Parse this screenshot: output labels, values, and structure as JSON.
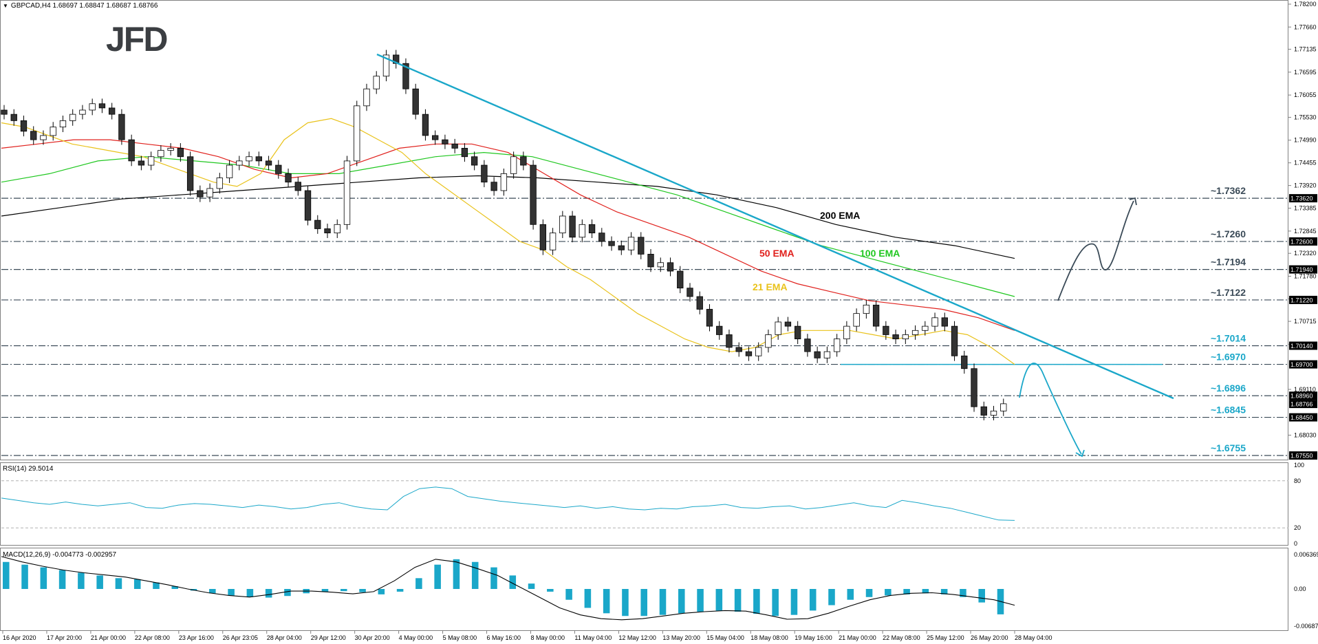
{
  "header": {
    "symbol_info": "GBPCAD,H4  1.68697 1.68847 1.68687 1.68766",
    "logo": "JFD"
  },
  "chart_data": {
    "type": "candlestick",
    "price_axis": {
      "ylim": [
        1.6755,
        1.782
      ],
      "ticks": [
        "1.78200",
        "1.77660",
        "1.77135",
        "1.76595",
        "1.76055",
        "1.75530",
        "1.74990",
        "1.74455",
        "1.73920",
        "1.73385",
        "1.72845",
        "1.72320",
        "1.71780",
        "1.71245",
        "1.70715",
        "1.70175",
        "1.69110",
        "1.68030"
      ],
      "tags": [
        {
          "value": "1.73620",
          "label": "1.73620"
        },
        {
          "value": "1.72600",
          "label": "1.72600"
        },
        {
          "value": "1.71940",
          "label": "1.71940"
        },
        {
          "value": "1.71220",
          "label": "1.71220"
        },
        {
          "value": "1.70140",
          "label": "1.70140"
        },
        {
          "value": "1.69700",
          "label": "1.69700"
        },
        {
          "value": "1.68960",
          "label": "1.68960"
        },
        {
          "value": "1.68766",
          "label": "1.68766"
        },
        {
          "value": "1.68450",
          "label": "1.68450"
        },
        {
          "value": "1.67550",
          "label": "1.67550"
        }
      ]
    },
    "levels": [
      {
        "value": 1.7362,
        "label": "~1.7362",
        "color": "#3a4a57"
      },
      {
        "value": 1.726,
        "label": "~1.7260",
        "color": "#3a4a57"
      },
      {
        "value": 1.7194,
        "label": "~1.7194",
        "color": "#3a4a57"
      },
      {
        "value": 1.7122,
        "label": "~1.7122",
        "color": "#3a4a57"
      },
      {
        "value": 1.7014,
        "label": "~1.7014",
        "color": "#1aa7c9"
      },
      {
        "value": 1.697,
        "label": "~1.6970",
        "color": "#1aa7c9"
      },
      {
        "value": 1.6896,
        "label": "~1.6896",
        "color": "#1aa7c9"
      },
      {
        "value": 1.6845,
        "label": "~1.6845",
        "color": "#1aa7c9"
      },
      {
        "value": 1.6755,
        "label": "~1.6755",
        "color": "#1aa7c9"
      }
    ],
    "x_labels": [
      "16 Apr 2020",
      "17 Apr 20:00",
      "21 Apr 00:00",
      "22 Apr 08:00",
      "23 Apr 16:00",
      "26 Apr 23:05",
      "28 Apr 04:00",
      "29 Apr 12:00",
      "30 Apr 20:00",
      "4 May 00:00",
      "5 May 08:00",
      "6 May 16:00",
      "8 May 00:00",
      "11 May 04:00",
      "12 May 12:00",
      "13 May 20:00",
      "15 May 04:00",
      "18 May 08:00",
      "19 May 16:00",
      "21 May 00:00",
      "22 May 08:00",
      "25 May 12:00",
      "26 May 20:00",
      "28 May 04:00"
    ],
    "close_series": [
      1.756,
      1.7545,
      1.752,
      1.75,
      1.751,
      1.753,
      1.7545,
      1.756,
      1.757,
      1.7585,
      1.7575,
      1.756,
      1.75,
      1.745,
      1.744,
      1.746,
      1.7475,
      1.748,
      1.746,
      1.738,
      1.7365,
      1.7385,
      1.741,
      1.744,
      1.745,
      1.746,
      1.745,
      1.744,
      1.742,
      1.74,
      1.738,
      1.731,
      1.729,
      1.728,
      1.73,
      1.745,
      1.758,
      1.762,
      1.765,
      1.77,
      1.768,
      1.762,
      1.756,
      1.751,
      1.75,
      1.749,
      1.748,
      1.746,
      1.744,
      1.74,
      1.738,
      1.742,
      1.746,
      1.744,
      1.73,
      1.724,
      1.728,
      1.732,
      1.727,
      1.73,
      1.728,
      1.726,
      1.725,
      1.724,
      1.727,
      1.723,
      1.72,
      1.721,
      1.719,
      1.715,
      1.713,
      1.71,
      1.706,
      1.704,
      1.701,
      1.7,
      1.699,
      1.701,
      1.704,
      1.707,
      1.706,
      1.703,
      1.7,
      1.6985,
      1.7,
      1.703,
      1.706,
      1.709,
      1.711,
      1.706,
      1.704,
      1.703,
      1.704,
      1.705,
      1.706,
      1.708,
      1.706,
      1.699,
      1.696,
      1.687,
      1.685,
      1.686,
      1.6877
    ],
    "ema_21": [
      1.754,
      1.753,
      1.751,
      1.749,
      1.748,
      1.747,
      1.746,
      1.744,
      1.742,
      1.74,
      1.739,
      1.742,
      1.75,
      1.754,
      1.755,
      1.753,
      1.75,
      1.747,
      1.742,
      1.738,
      1.734,
      1.73,
      1.726,
      1.724,
      1.72,
      1.717,
      1.713,
      1.709,
      1.706,
      1.703,
      1.701,
      1.7,
      1.701,
      1.704,
      1.705,
      1.705,
      1.705,
      1.704,
      1.703,
      1.704,
      1.705,
      1.704,
      1.701,
      1.697
    ],
    "ema_50": [
      1.748,
      1.749,
      1.75,
      1.75,
      1.749,
      1.748,
      1.746,
      1.743,
      1.741,
      1.742,
      1.745,
      1.748,
      1.749,
      1.749,
      1.747,
      1.742,
      1.737,
      1.733,
      1.73,
      1.727,
      1.723,
      1.719,
      1.716,
      1.714,
      1.712,
      1.711,
      1.71,
      1.708,
      1.705
    ],
    "ema_100": [
      1.74,
      1.742,
      1.745,
      1.746,
      1.745,
      1.744,
      1.742,
      1.742,
      1.744,
      1.746,
      1.747,
      1.746,
      1.743,
      1.74,
      1.737,
      1.733,
      1.729,
      1.725,
      1.722,
      1.719,
      1.716,
      1.713
    ],
    "ema_200": [
      1.732,
      1.734,
      1.736,
      1.737,
      1.738,
      1.739,
      1.74,
      1.741,
      1.7415,
      1.741,
      1.74,
      1.739,
      1.737,
      1.734,
      1.73,
      1.727,
      1.725,
      1.722
    ],
    "ema_labels": [
      {
        "text": "200 EMA",
        "color": "#000000"
      },
      {
        "text": "50 EMA",
        "color": "#e0201c"
      },
      {
        "text": "100 EMA",
        "color": "#1fc71f"
      },
      {
        "text": "21 EMA",
        "color": "#e9c21a"
      }
    ],
    "rsi": {
      "title": "RSI(14) 29.5014",
      "ticks": [
        "100",
        "80",
        "20",
        "0"
      ],
      "values": [
        58,
        55,
        52,
        50,
        53,
        50,
        48,
        50,
        52,
        46,
        45,
        49,
        51,
        50,
        48,
        46,
        49,
        47,
        44,
        46,
        50,
        52,
        47,
        44,
        43,
        60,
        70,
        72,
        70,
        60,
        57,
        54,
        52,
        50,
        48,
        46,
        48,
        45,
        47,
        44,
        43,
        45,
        44,
        47,
        48,
        50,
        46,
        45,
        47,
        48,
        44,
        46,
        49,
        52,
        48,
        46,
        55,
        52,
        48,
        45,
        40,
        35,
        30,
        29.5
      ]
    },
    "macd": {
      "title": "MACD(12,26,9) -0.004773 -0.002957",
      "ticks": [
        "0.006369",
        "0.00",
        "-0.006877"
      ],
      "hist": [
        0.005,
        0.0045,
        0.004,
        0.0035,
        0.003,
        0.0025,
        0.002,
        0.0018,
        0.0012,
        0.0005,
        -0.0003,
        -0.0008,
        -0.0012,
        -0.0015,
        -0.0016,
        -0.0013,
        -0.0008,
        -0.0005,
        -0.0004,
        -0.0006,
        -0.001,
        -0.0005,
        0.002,
        0.0045,
        0.0055,
        0.005,
        0.004,
        0.0025,
        0.001,
        -0.0005,
        -0.002,
        -0.0035,
        -0.0045,
        -0.005,
        -0.005,
        -0.0048,
        -0.0045,
        -0.0042,
        -0.004,
        -0.0042,
        -0.0046,
        -0.005,
        -0.0048,
        -0.004,
        -0.003,
        -0.002,
        -0.0015,
        -0.0012,
        -0.001,
        -0.0008,
        -0.001,
        -0.0015,
        -0.0025,
        -0.0047
      ],
      "signal": [
        0.006,
        0.005,
        0.0042,
        0.0035,
        0.003,
        0.0026,
        0.0022,
        0.0015,
        0.0008,
        0.0,
        -0.0007,
        -0.0012,
        -0.0015,
        -0.001,
        -0.0004,
        -0.0004,
        -0.0006,
        -0.0009,
        -0.0005,
        0.0015,
        0.004,
        0.0055,
        0.005,
        0.0038,
        0.0025,
        0.0005,
        -0.0015,
        -0.0035,
        -0.0048,
        -0.0055,
        -0.0057,
        -0.0055,
        -0.005,
        -0.0045,
        -0.0042,
        -0.004,
        -0.0041,
        -0.0048,
        -0.0056,
        -0.0055,
        -0.0045,
        -0.0032,
        -0.002,
        -0.0012,
        -0.0008,
        -0.0007,
        -0.001,
        -0.0015,
        -0.002,
        -0.003
      ]
    },
    "grid": false
  }
}
